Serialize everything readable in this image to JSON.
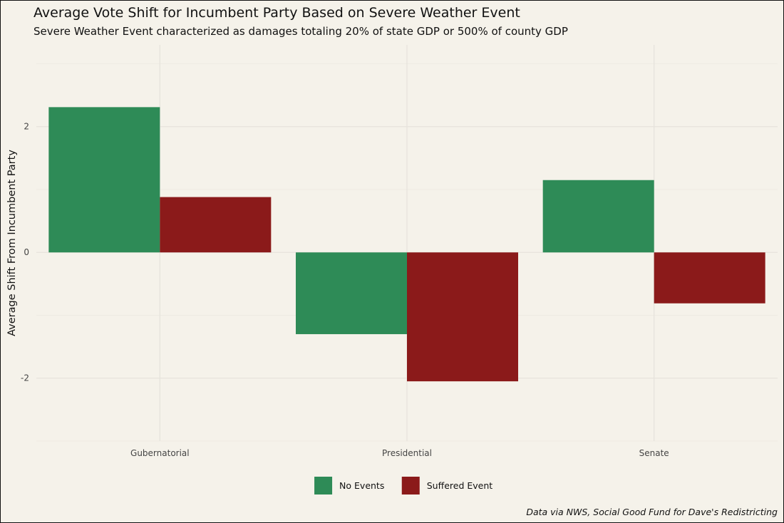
{
  "chart_data": {
    "type": "bar",
    "title": "Average Vote Shift for Incumbent Party Based on Severe Weather Event",
    "subtitle": "Severe Weather Event characterized as damages totaling 20% of state GDP or 500% of county GDP",
    "caption": "Data via NWS, Social Good Fund for Dave's Redistricting",
    "xlabel": "",
    "ylabel": "Average Shift From Incumbent Party",
    "categories": [
      "Gubernatorial",
      "Presidential",
      "Senate"
    ],
    "series": [
      {
        "name": "No Events",
        "color": "#2e8b57",
        "values": [
          2.31,
          -1.3,
          1.15
        ]
      },
      {
        "name": "Suffered Event",
        "color": "#8b1a1a",
        "values": [
          0.88,
          -2.05,
          -0.81
        ]
      }
    ],
    "ylim": [
      -3.0,
      3.3
    ],
    "yticks": [
      -2,
      0,
      2
    ],
    "ytick_labels": [
      "-2",
      "0",
      "2"
    ],
    "grid": true,
    "legend_position": "bottom"
  }
}
